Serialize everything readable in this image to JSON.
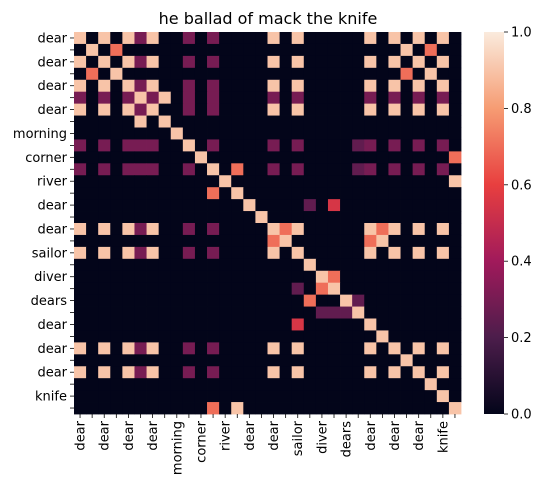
{
  "chart_data": {
    "type": "heatmap",
    "title": "he ballad of mack the knife",
    "xlabel": "",
    "ylabel": "",
    "row_labels": [
      "dear",
      "",
      "dear",
      "",
      "dear",
      "",
      "dear",
      "",
      "morning",
      "",
      "corner",
      "",
      "river",
      "",
      "dear",
      "",
      "dear",
      "",
      "sailor",
      "",
      "diver",
      "",
      "dears",
      "",
      "dear",
      "",
      "dear",
      "",
      "dear",
      "",
      "knife",
      ""
    ],
    "col_labels": [
      "dear",
      "",
      "dear",
      "",
      "dear",
      "",
      "dear",
      "",
      "morning",
      "",
      "corner",
      "",
      "river",
      "",
      "dear",
      "",
      "dear",
      "",
      "sailor",
      "",
      "diver",
      "",
      "dears",
      "",
      "dear",
      "",
      "dear",
      "",
      "dear",
      "",
      "knife",
      ""
    ],
    "values": [
      [
        0.9,
        0,
        0.9,
        0,
        0.9,
        0.3,
        0.9,
        0,
        0,
        0.3,
        0,
        0.3,
        0,
        0,
        0,
        0,
        0.9,
        0,
        0.9,
        0,
        0,
        0,
        0,
        0,
        0.9,
        0,
        0.9,
        0,
        0.9,
        0,
        0.9,
        0
      ],
      [
        0,
        0.9,
        0,
        0.7,
        0,
        0,
        0,
        0,
        0,
        0,
        0,
        0,
        0,
        0,
        0,
        0,
        0,
        0,
        0,
        0,
        0,
        0,
        0,
        0,
        0,
        0,
        0,
        0.9,
        0,
        0.7,
        0,
        0
      ],
      [
        0.9,
        0,
        0.9,
        0,
        0.9,
        0.3,
        0.9,
        0,
        0,
        0.3,
        0,
        0.3,
        0,
        0,
        0,
        0,
        0.9,
        0,
        0.9,
        0,
        0,
        0,
        0,
        0,
        0.9,
        0,
        0.9,
        0,
        0.9,
        0,
        0.9,
        0
      ],
      [
        0,
        0.7,
        0,
        0.9,
        0,
        0,
        0,
        0,
        0,
        0,
        0,
        0,
        0,
        0,
        0,
        0,
        0,
        0,
        0,
        0,
        0,
        0,
        0,
        0,
        0,
        0,
        0,
        0.7,
        0,
        0.9,
        0,
        0
      ],
      [
        0.9,
        0,
        0.9,
        0,
        0.9,
        0.3,
        0.9,
        0,
        0,
        0.3,
        0,
        0.3,
        0,
        0,
        0,
        0,
        0.9,
        0,
        0.9,
        0,
        0,
        0,
        0,
        0,
        0.9,
        0,
        0.9,
        0,
        0.9,
        0,
        0.9,
        0
      ],
      [
        0.3,
        0,
        0.3,
        0,
        0.3,
        0.9,
        0.3,
        0.9,
        0,
        0.3,
        0,
        0.3,
        0,
        0,
        0,
        0,
        0.3,
        0,
        0.3,
        0,
        0,
        0,
        0,
        0,
        0.3,
        0,
        0.3,
        0,
        0.3,
        0,
        0.3,
        0
      ],
      [
        0.9,
        0,
        0.9,
        0,
        0.9,
        0.3,
        0.9,
        0,
        0,
        0.3,
        0,
        0.3,
        0,
        0,
        0,
        0,
        0.9,
        0,
        0.9,
        0,
        0,
        0,
        0,
        0,
        0.9,
        0,
        0.9,
        0,
        0.9,
        0,
        0.9,
        0
      ],
      [
        0,
        0,
        0,
        0,
        0,
        0.9,
        0,
        0.9,
        0,
        0,
        0,
        0,
        0,
        0,
        0,
        0,
        0,
        0,
        0,
        0,
        0,
        0,
        0,
        0,
        0,
        0,
        0,
        0,
        0,
        0,
        0,
        0
      ],
      [
        0,
        0,
        0,
        0,
        0,
        0,
        0,
        0,
        0.9,
        0,
        0,
        0,
        0,
        0,
        0,
        0,
        0,
        0,
        0,
        0,
        0,
        0,
        0,
        0,
        0,
        0,
        0,
        0,
        0,
        0,
        0,
        0
      ],
      [
        0.3,
        0,
        0.3,
        0,
        0.3,
        0.3,
        0.3,
        0,
        0,
        0.9,
        0,
        0.3,
        0,
        0,
        0,
        0,
        0.3,
        0,
        0.3,
        0,
        0,
        0,
        0,
        0.25,
        0.3,
        0,
        0.3,
        0,
        0.3,
        0,
        0.3,
        0
      ],
      [
        0,
        0,
        0,
        0,
        0,
        0,
        0,
        0,
        0,
        0,
        0.9,
        0,
        0,
        0,
        0,
        0,
        0,
        0,
        0,
        0,
        0,
        0,
        0,
        0,
        0,
        0,
        0,
        0,
        0,
        0,
        0,
        0.7
      ],
      [
        0.3,
        0,
        0.3,
        0,
        0.3,
        0.3,
        0.3,
        0,
        0,
        0.3,
        0,
        0.9,
        0,
        0.7,
        0,
        0,
        0.3,
        0,
        0.3,
        0,
        0,
        0,
        0,
        0.25,
        0.3,
        0,
        0.3,
        0,
        0.3,
        0,
        0.3,
        0
      ],
      [
        0,
        0,
        0,
        0,
        0,
        0,
        0,
        0,
        0,
        0,
        0,
        0,
        0.9,
        0,
        0,
        0,
        0,
        0,
        0,
        0,
        0,
        0,
        0,
        0,
        0,
        0,
        0,
        0,
        0,
        0,
        0,
        0.9
      ],
      [
        0,
        0,
        0,
        0,
        0,
        0,
        0,
        0,
        0,
        0,
        0,
        0.7,
        0,
        0.9,
        0,
        0,
        0,
        0,
        0,
        0,
        0,
        0,
        0,
        0,
        0,
        0,
        0,
        0,
        0,
        0,
        0,
        0
      ],
      [
        0,
        0,
        0,
        0,
        0,
        0,
        0,
        0,
        0,
        0,
        0,
        0,
        0,
        0,
        0.9,
        0,
        0,
        0,
        0,
        0.25,
        0,
        0.55,
        0,
        0,
        0,
        0,
        0,
        0,
        0,
        0,
        0,
        0
      ],
      [
        0,
        0,
        0,
        0,
        0,
        0,
        0,
        0,
        0,
        0,
        0,
        0,
        0,
        0,
        0,
        0.9,
        0,
        0,
        0,
        0,
        0,
        0,
        0,
        0,
        0,
        0,
        0,
        0,
        0,
        0,
        0,
        0
      ],
      [
        0.9,
        0,
        0.9,
        0,
        0.9,
        0.3,
        0.9,
        0,
        0,
        0.3,
        0,
        0.3,
        0,
        0,
        0,
        0,
        0.9,
        0.7,
        0.9,
        0,
        0,
        0,
        0,
        0,
        0.9,
        0.7,
        0.9,
        0,
        0.9,
        0,
        0.9,
        0
      ],
      [
        0,
        0,
        0,
        0,
        0,
        0,
        0,
        0,
        0,
        0,
        0,
        0,
        0,
        0,
        0,
        0,
        0.7,
        0.9,
        0,
        0,
        0,
        0,
        0,
        0,
        0.7,
        0.9,
        0,
        0,
        0,
        0,
        0,
        0
      ],
      [
        0.9,
        0,
        0.9,
        0,
        0.9,
        0.3,
        0.9,
        0,
        0,
        0.3,
        0,
        0.3,
        0,
        0,
        0,
        0,
        0.9,
        0,
        0.9,
        0,
        0,
        0,
        0,
        0,
        0.9,
        0,
        0.9,
        0,
        0.9,
        0,
        0.9,
        0
      ],
      [
        0,
        0,
        0,
        0,
        0,
        0,
        0,
        0,
        0,
        0,
        0,
        0,
        0,
        0,
        0,
        0,
        0,
        0,
        0,
        0.9,
        0,
        0,
        0,
        0,
        0,
        0,
        0,
        0,
        0,
        0,
        0,
        0
      ],
      [
        0,
        0,
        0,
        0,
        0,
        0,
        0,
        0,
        0,
        0,
        0,
        0,
        0,
        0,
        0,
        0,
        0,
        0,
        0,
        0,
        0.9,
        0.7,
        0,
        0,
        0,
        0,
        0,
        0,
        0,
        0,
        0,
        0
      ],
      [
        0,
        0,
        0,
        0,
        0,
        0,
        0,
        0,
        0,
        0,
        0,
        0,
        0,
        0,
        0,
        0,
        0,
        0,
        0.25,
        0,
        0.7,
        0.9,
        0,
        0,
        0,
        0,
        0,
        0,
        0,
        0,
        0,
        0
      ],
      [
        0,
        0,
        0,
        0,
        0,
        0,
        0,
        0,
        0,
        0,
        0,
        0,
        0,
        0,
        0,
        0,
        0,
        0,
        0,
        0.7,
        0,
        0,
        0.9,
        0.25,
        0,
        0,
        0,
        0,
        0,
        0,
        0,
        0
      ],
      [
        0,
        0,
        0,
        0,
        0,
        0,
        0,
        0,
        0,
        0,
        0,
        0,
        0,
        0,
        0,
        0,
        0,
        0,
        0,
        0,
        0.25,
        0.25,
        0.25,
        0.9,
        0,
        0,
        0,
        0,
        0,
        0,
        0,
        0
      ],
      [
        0,
        0,
        0,
        0,
        0,
        0,
        0,
        0,
        0,
        0,
        0,
        0,
        0,
        0,
        0,
        0,
        0,
        0,
        0.55,
        0,
        0,
        0,
        0,
        0,
        0.9,
        0,
        0,
        0,
        0,
        0,
        0,
        0
      ],
      [
        0,
        0,
        0,
        0,
        0,
        0,
        0,
        0,
        0,
        0,
        0,
        0,
        0,
        0,
        0,
        0,
        0,
        0,
        0,
        0,
        0,
        0,
        0,
        0,
        0,
        0.9,
        0,
        0,
        0,
        0,
        0,
        0
      ],
      [
        0.9,
        0,
        0.9,
        0,
        0.9,
        0.3,
        0.9,
        0,
        0,
        0.3,
        0,
        0.3,
        0,
        0,
        0,
        0,
        0.9,
        0,
        0.9,
        0,
        0,
        0,
        0,
        0,
        0.9,
        0,
        0.9,
        0,
        0.9,
        0,
        0.9,
        0
      ],
      [
        0,
        0,
        0,
        0,
        0,
        0,
        0,
        0,
        0,
        0,
        0,
        0,
        0,
        0,
        0,
        0,
        0,
        0,
        0,
        0,
        0,
        0,
        0,
        0,
        0,
        0,
        0,
        0.9,
        0,
        0,
        0,
        0
      ],
      [
        0.9,
        0,
        0.9,
        0,
        0.9,
        0.3,
        0.9,
        0,
        0,
        0.3,
        0,
        0.3,
        0,
        0,
        0,
        0,
        0.9,
        0,
        0.9,
        0,
        0,
        0,
        0,
        0,
        0.9,
        0,
        0.9,
        0,
        0.9,
        0,
        0.9,
        0
      ],
      [
        0,
        0,
        0,
        0,
        0,
        0,
        0,
        0,
        0,
        0,
        0,
        0,
        0,
        0,
        0,
        0,
        0,
        0,
        0,
        0,
        0,
        0,
        0,
        0,
        0,
        0,
        0,
        0,
        0,
        0.9,
        0,
        0
      ],
      [
        0,
        0,
        0,
        0,
        0,
        0,
        0,
        0,
        0,
        0,
        0,
        0,
        0,
        0,
        0,
        0,
        0,
        0,
        0,
        0,
        0,
        0,
        0,
        0,
        0,
        0,
        0,
        0,
        0,
        0,
        0.9,
        0
      ],
      [
        0,
        0,
        0,
        0,
        0,
        0,
        0,
        0,
        0,
        0,
        0,
        0.7,
        0,
        0.9,
        0,
        0,
        0,
        0,
        0,
        0,
        0,
        0,
        0,
        0,
        0,
        0,
        0,
        0,
        0,
        0,
        0,
        0.9
      ]
    ],
    "colorbar": {
      "ticks": [
        "0.0",
        "0.2",
        "0.4",
        "0.6",
        "0.8",
        "1.0"
      ],
      "range": [
        0,
        1
      ]
    },
    "colormap": [
      "#03051a",
      "#4c1d4b",
      "#a11a5b",
      "#e83f3f",
      "#f69c73",
      "#faebdd"
    ]
  }
}
